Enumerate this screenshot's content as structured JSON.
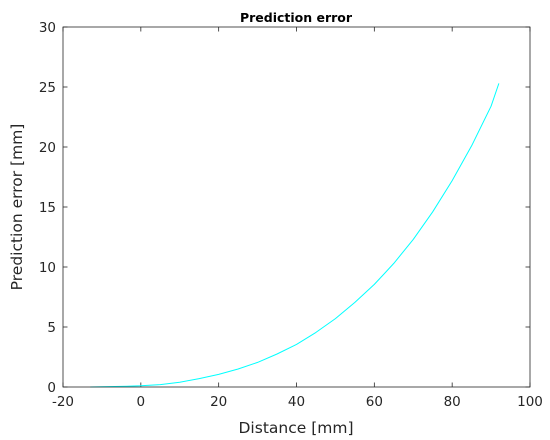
{
  "chart_data": {
    "type": "line",
    "title": "Prediction error",
    "xlabel": "Distance [mm]",
    "ylabel": "Prediction error [mm]",
    "xlim": [
      -20,
      100
    ],
    "ylim": [
      0,
      30
    ],
    "xticks": [
      "-20",
      "0",
      "20",
      "40",
      "60",
      "80",
      "100"
    ],
    "yticks": [
      "0",
      "5",
      "10",
      "15",
      "20",
      "25",
      "30"
    ],
    "grid": false,
    "legend": "none",
    "series": [
      {
        "color": "#00ffff",
        "x": [
          -13,
          -10,
          -5,
          0,
          5,
          10,
          15,
          20,
          25,
          30,
          35,
          40,
          45,
          50,
          55,
          60,
          65,
          70,
          75,
          80,
          85,
          90,
          92
        ],
        "y": [
          0.0,
          0.02,
          0.05,
          0.1,
          0.2,
          0.4,
          0.7,
          1.05,
          1.5,
          2.05,
          2.75,
          3.55,
          4.55,
          5.7,
          7.05,
          8.55,
          10.3,
          12.3,
          14.6,
          17.2,
          20.1,
          23.4,
          25.3
        ]
      }
    ]
  }
}
